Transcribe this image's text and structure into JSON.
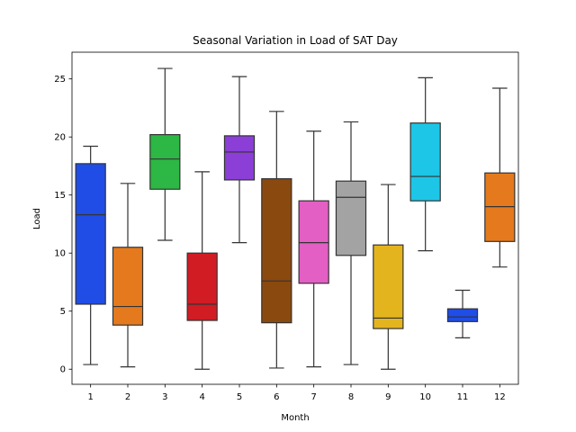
{
  "chart_data": {
    "type": "box",
    "title": "Seasonal Variation in Load of SAT Day",
    "xlabel": "Month",
    "ylabel": "Load",
    "ylim": [
      -1.3,
      27.3
    ],
    "yticks": [
      0,
      5,
      10,
      15,
      20,
      25
    ],
    "grid": false,
    "categories": [
      "1",
      "2",
      "3",
      "4",
      "5",
      "6",
      "7",
      "8",
      "9",
      "10",
      "11",
      "12"
    ],
    "boxes": [
      {
        "category": "1",
        "min": 0.4,
        "q1": 5.6,
        "median": 13.3,
        "q3": 17.7,
        "max": 19.2,
        "color": "#1f4de6"
      },
      {
        "category": "2",
        "min": 0.2,
        "q1": 3.8,
        "median": 5.4,
        "q3": 10.5,
        "max": 16.0,
        "color": "#e47a1d"
      },
      {
        "category": "3",
        "min": 11.1,
        "q1": 15.5,
        "median": 18.1,
        "q3": 20.2,
        "max": 25.9,
        "color": "#2db744"
      },
      {
        "category": "4",
        "min": 0.0,
        "q1": 4.2,
        "median": 5.6,
        "q3": 10.0,
        "max": 17.0,
        "color": "#d11c24"
      },
      {
        "category": "5",
        "min": 10.9,
        "q1": 16.3,
        "median": 18.7,
        "q3": 20.1,
        "max": 25.2,
        "color": "#8b3fd6"
      },
      {
        "category": "6",
        "min": 0.1,
        "q1": 4.0,
        "median": 7.6,
        "q3": 16.4,
        "max": 22.2,
        "color": "#8a4a0f"
      },
      {
        "category": "7",
        "min": 0.2,
        "q1": 7.4,
        "median": 10.9,
        "q3": 14.5,
        "max": 20.5,
        "color": "#e35fc4"
      },
      {
        "category": "8",
        "min": 0.4,
        "q1": 9.8,
        "median": 14.8,
        "q3": 16.2,
        "max": 21.3,
        "color": "#a3a3a3"
      },
      {
        "category": "9",
        "min": 0.0,
        "q1": 3.5,
        "median": 4.4,
        "q3": 10.7,
        "max": 15.9,
        "color": "#e3b41e"
      },
      {
        "category": "10",
        "min": 10.2,
        "q1": 14.5,
        "median": 16.6,
        "q3": 21.2,
        "max": 25.1,
        "color": "#1dc6e6"
      },
      {
        "category": "11",
        "min": 2.7,
        "q1": 4.1,
        "median": 4.5,
        "q3": 5.2,
        "max": 6.8,
        "color": "#1f4de6"
      },
      {
        "category": "12",
        "min": 8.8,
        "q1": 11.0,
        "median": 14.0,
        "q3": 16.9,
        "max": 24.2,
        "color": "#e47a1d"
      }
    ]
  }
}
